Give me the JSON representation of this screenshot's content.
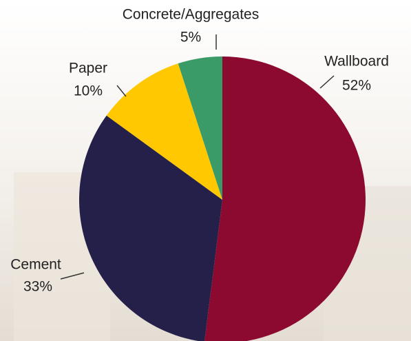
{
  "chart_data": {
    "type": "pie",
    "categories": [
      "Wallboard",
      "Cement",
      "Paper",
      "Concrete/Aggregates"
    ],
    "values": [
      52,
      33,
      10,
      5
    ],
    "value_labels": [
      "52%",
      "33%",
      "10%",
      "5%"
    ],
    "colors": [
      "#8c0a30",
      "#25204a",
      "#ffc800",
      "#3a9a68"
    ]
  }
}
